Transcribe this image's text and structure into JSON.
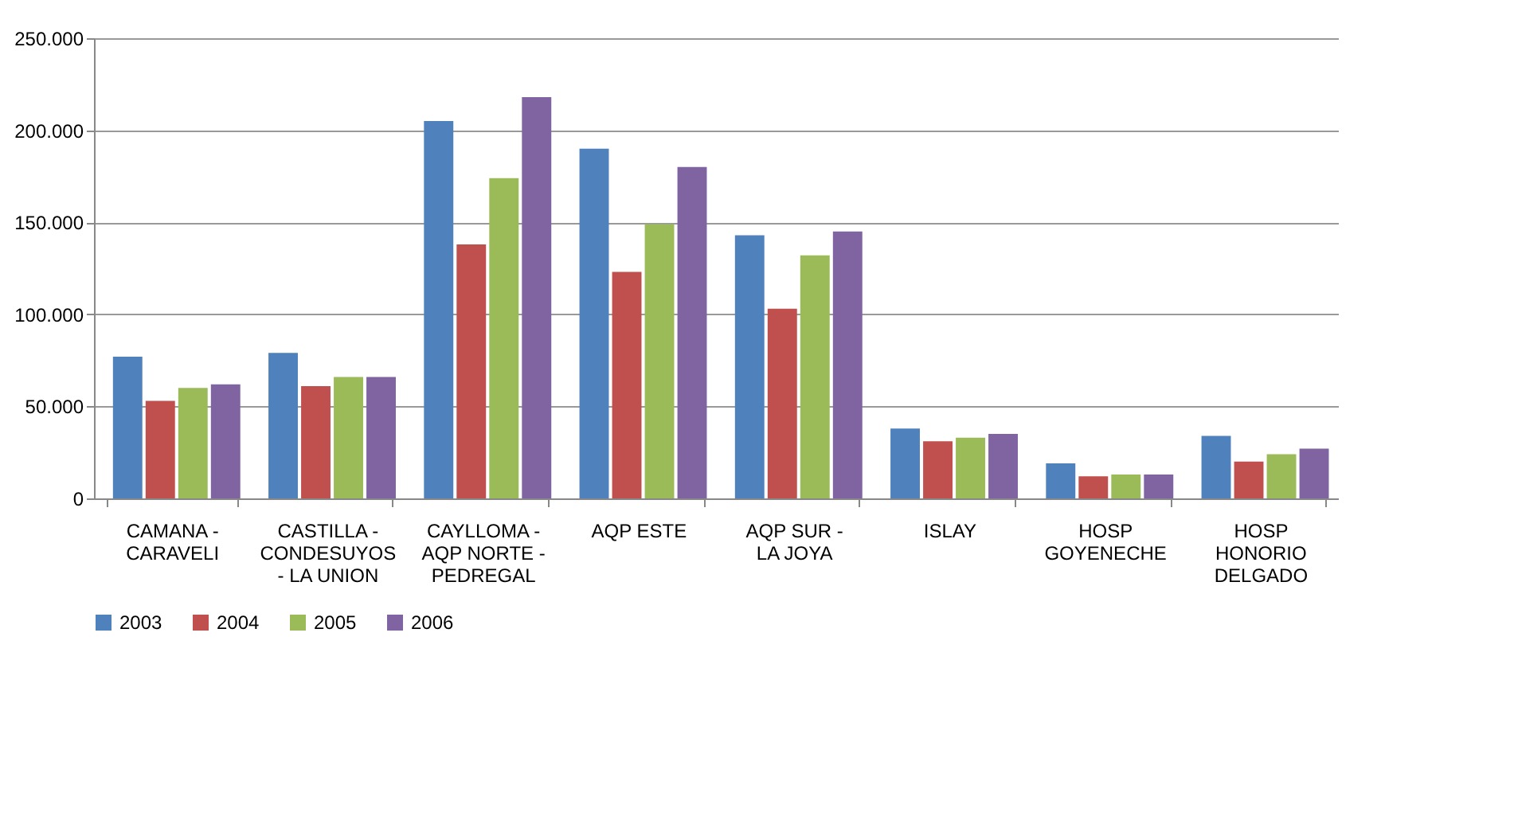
{
  "chart_data": {
    "type": "bar",
    "categories": [
      "CAMANA - CARAVELI",
      "CASTILLA - CONDESUYOS - LA UNION",
      "CAYLLOMA - AQP NORTE - PEDREGAL",
      "AQP ESTE",
      "AQP SUR - LA JOYA",
      "ISLAY",
      "HOSP GOYENECHE",
      "HOSP HONORIO DELGADO"
    ],
    "series": [
      {
        "name": "2003",
        "color": "#4f81bd",
        "values": [
          77000,
          79000,
          205000,
          190000,
          143000,
          38000,
          19000,
          34000
        ]
      },
      {
        "name": "2004",
        "color": "#c0504d",
        "values": [
          53000,
          61000,
          138000,
          123000,
          103000,
          31000,
          12000,
          20000
        ]
      },
      {
        "name": "2005",
        "color": "#9bbb59",
        "values": [
          60000,
          66000,
          174000,
          149000,
          132000,
          33000,
          13000,
          24000
        ]
      },
      {
        "name": "2006",
        "color": "#8064a2",
        "values": [
          62000,
          66000,
          218000,
          180000,
          145000,
          35000,
          13000,
          27000
        ]
      }
    ],
    "ylim": [
      0,
      250000
    ],
    "yticks": [
      {
        "value": 0,
        "label": "0"
      },
      {
        "value": 50000,
        "label": "50.000"
      },
      {
        "value": 100000,
        "label": "100.000"
      },
      {
        "value": 150000,
        "label": "150.000"
      },
      {
        "value": 200000,
        "label": "200.000"
      },
      {
        "value": 250000,
        "label": "250.000"
      }
    ],
    "grid": "y",
    "legend": "bottom"
  }
}
